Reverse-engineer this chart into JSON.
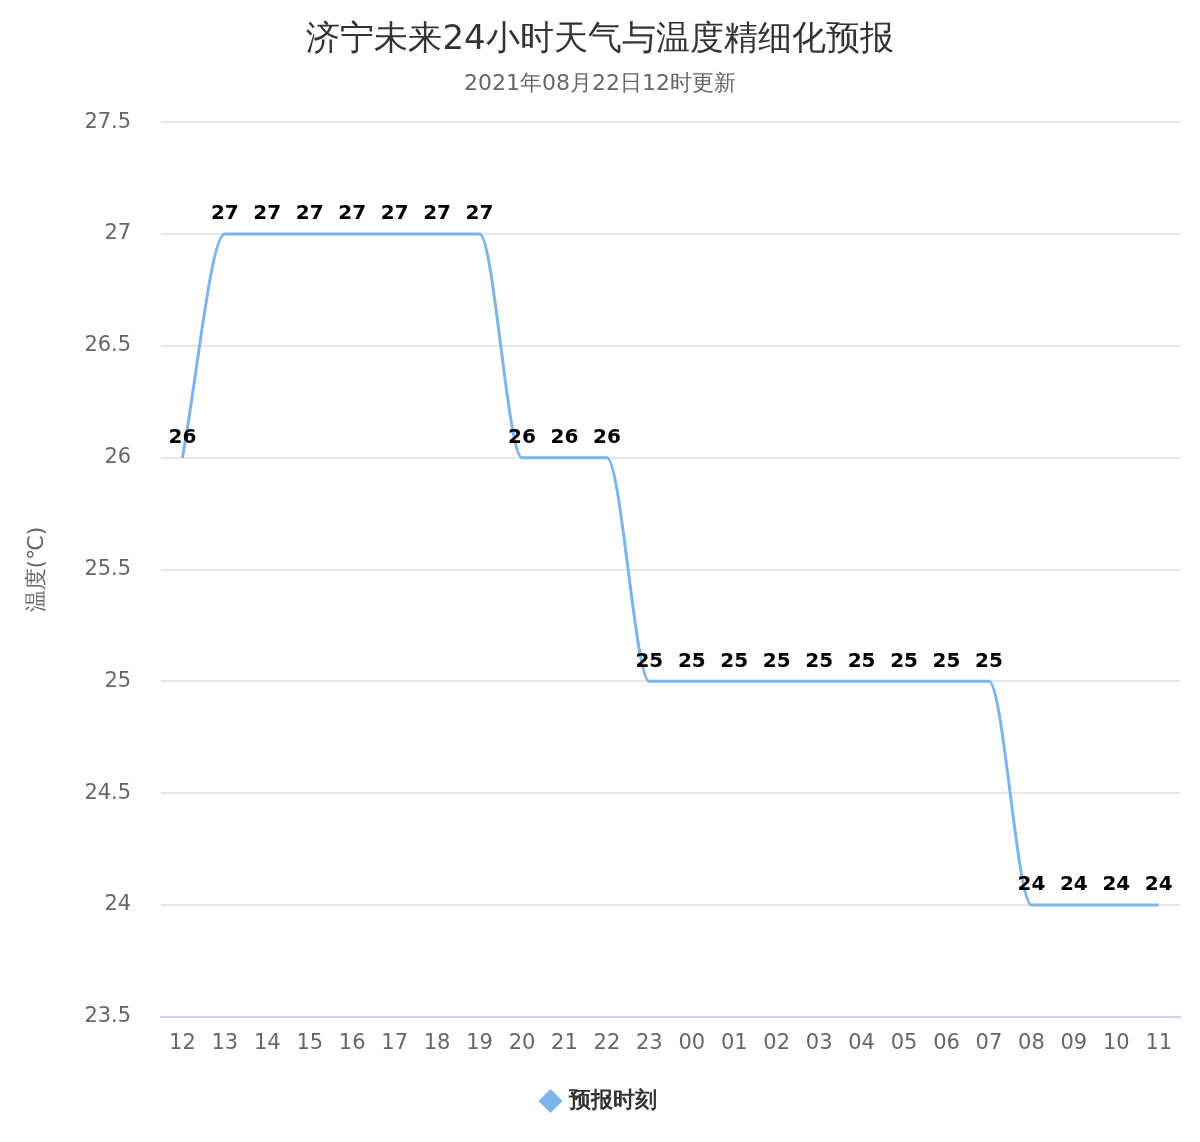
{
  "chart_data": {
    "type": "line",
    "title": "济宁未来24小时天气与温度精细化预报",
    "subtitle": "2021年08月22日12时更新",
    "ylabel": "温度(℃)",
    "categories": [
      "12",
      "13",
      "14",
      "15",
      "16",
      "17",
      "18",
      "19",
      "20",
      "21",
      "22",
      "23",
      "00",
      "01",
      "02",
      "03",
      "04",
      "05",
      "06",
      "07",
      "08",
      "09",
      "10",
      "11"
    ],
    "series": [
      {
        "name": "预报时刻",
        "color": "#7cb5ec",
        "values": [
          26,
          27,
          27,
          27,
          27,
          27,
          27,
          27,
          26,
          26,
          26,
          25,
          25,
          25,
          25,
          25,
          25,
          25,
          25,
          25,
          24,
          24,
          24,
          24
        ]
      }
    ],
    "ylim": [
      23.5,
      27.5
    ],
    "yticks": [
      23.5,
      24,
      24.5,
      25,
      25.5,
      26,
      26.5,
      27,
      27.5
    ],
    "grid": "y",
    "legend": "bottom",
    "data_labels": true
  }
}
